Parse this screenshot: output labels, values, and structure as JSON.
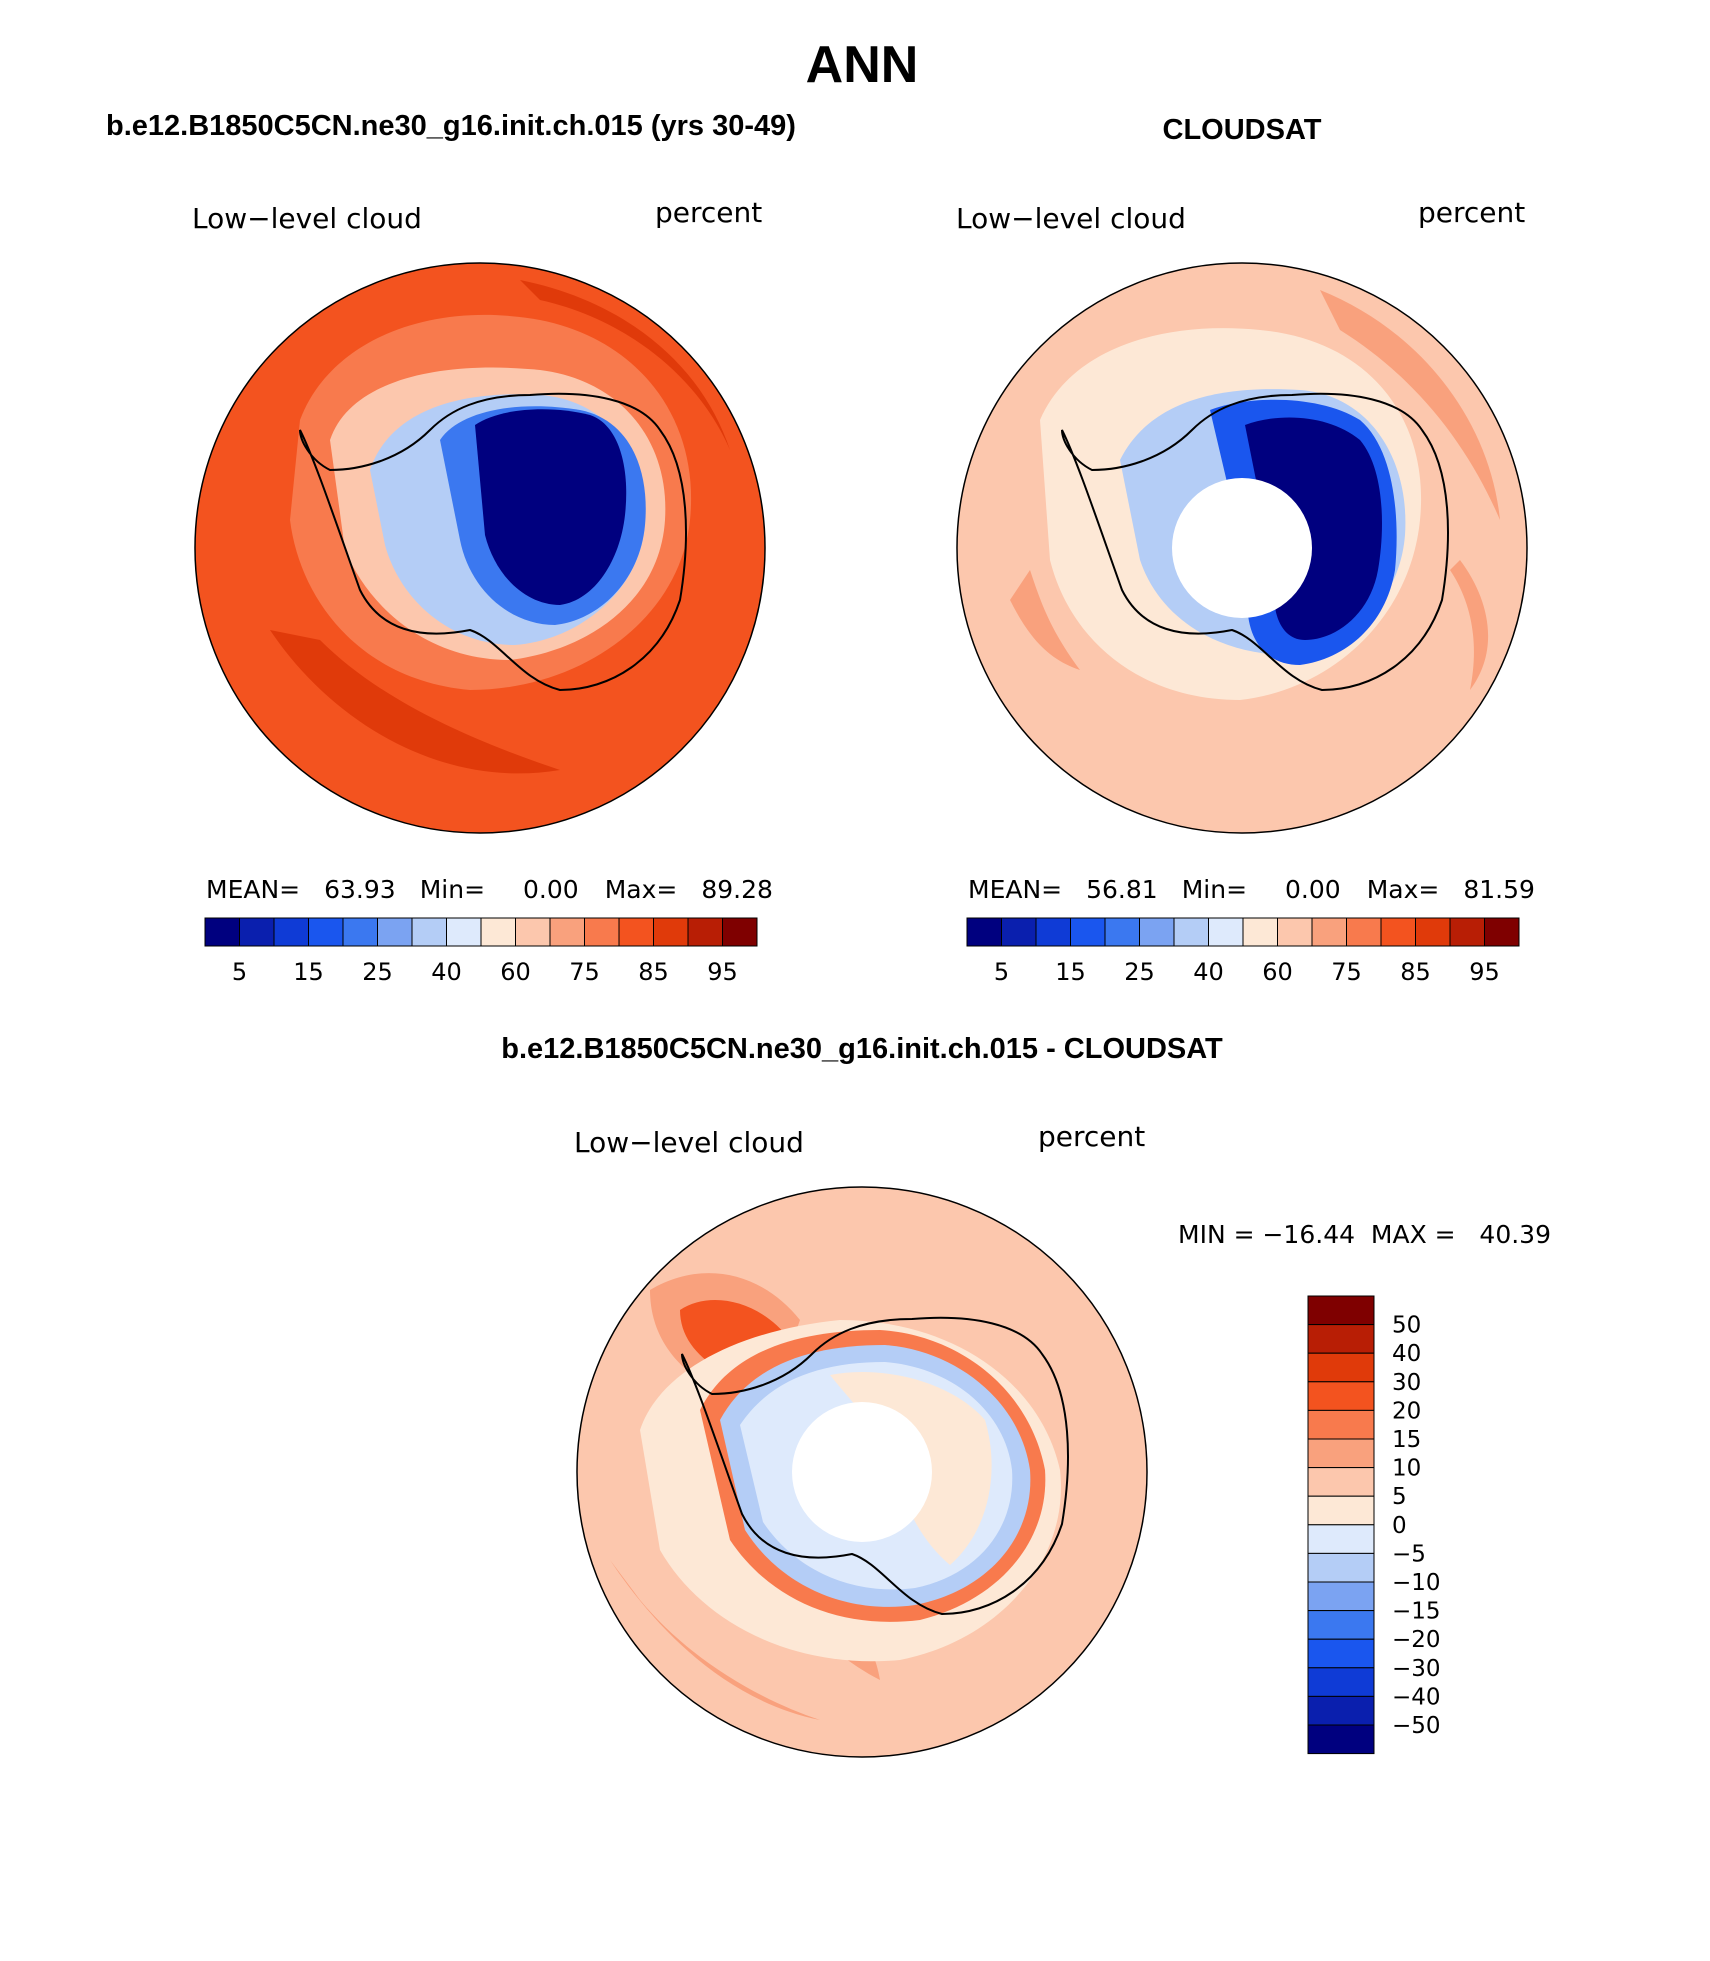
{
  "page": {
    "title": "ANN",
    "bottom_title": "b.e12.B1850C5CN.ne30_g16.init.ch.015 - CLOUDSAT"
  },
  "palettes": {
    "blue_red_16": [
      "#00007f",
      "#0a1fae",
      "#0f3bd6",
      "#1a56ee",
      "#3b78f0",
      "#7ba3f2",
      "#b4cdf6",
      "#deeafc",
      "#fde8d6",
      "#fcc7ad",
      "#f9a17d",
      "#f87a4d",
      "#f3531f",
      "#e03a0a",
      "#b81e05",
      "#7f0000"
    ]
  },
  "panels": [
    {
      "id": "model",
      "header": "b.e12.B1850C5CN.ne30_g16.init.ch.015 (yrs 30-49)",
      "field": "Low−level cloud",
      "units": "percent",
      "stats": {
        "mean_label": "MEAN=",
        "mean": "63.93",
        "min_label": "Min=",
        "min": "0.00",
        "max_label": "Max=",
        "max": "89.28"
      },
      "colorbar_ticks": [
        "5",
        "15",
        "25",
        "40",
        "60",
        "75",
        "85",
        "95"
      ],
      "has_polar_hole": false,
      "field_colors": {
        "ocean_outer": "#f3531f",
        "ocean_band": "#e03a0a",
        "ocean_inner": "#f87a4d",
        "coast": "#fcc7ad",
        "ice_edge": "#b4cdf6",
        "ice_mid": "#3b78f0",
        "plateau": "#00007f"
      }
    },
    {
      "id": "obs",
      "header": "CLOUDSAT",
      "field": "Low−level cloud",
      "units": "percent",
      "stats": {
        "mean_label": "MEAN=",
        "mean": "56.81",
        "min_label": "Min=",
        "min": "0.00",
        "max_label": "Max=",
        "max": "81.59"
      },
      "colorbar_ticks": [
        "5",
        "15",
        "25",
        "40",
        "60",
        "75",
        "85",
        "95"
      ],
      "has_polar_hole": true,
      "field_colors": {
        "ocean_outer": "#fcc7ad",
        "ocean_band": "#f9a17d",
        "ocean_inner": "#fde8d6",
        "coast": "#fde8d6",
        "ice_edge": "#b4cdf6",
        "ice_mid": "#1a56ee",
        "plateau": "#00007f"
      }
    },
    {
      "id": "diff",
      "field": "Low−level cloud",
      "units": "percent",
      "stats": {
        "minmax_text": "MIN = −16.44  MAX =   40.39"
      },
      "colorbar_ticks": [
        "50",
        "40",
        "30",
        "20",
        "15",
        "10",
        "5",
        "0",
        "−5",
        "−10",
        "−15",
        "−20",
        "−30",
        "−40",
        "−50"
      ],
      "has_polar_hole": true,
      "field_colors": {
        "ocean_outer": "#fcc7ad",
        "ocean_band": "#f9a17d",
        "ocean_inner": "#fde8d6",
        "coast": "#f87a4d",
        "ice_edge": "#b4cdf6",
        "ice_mid": "#deeafc",
        "plateau": "#fde8d6"
      }
    }
  ]
}
